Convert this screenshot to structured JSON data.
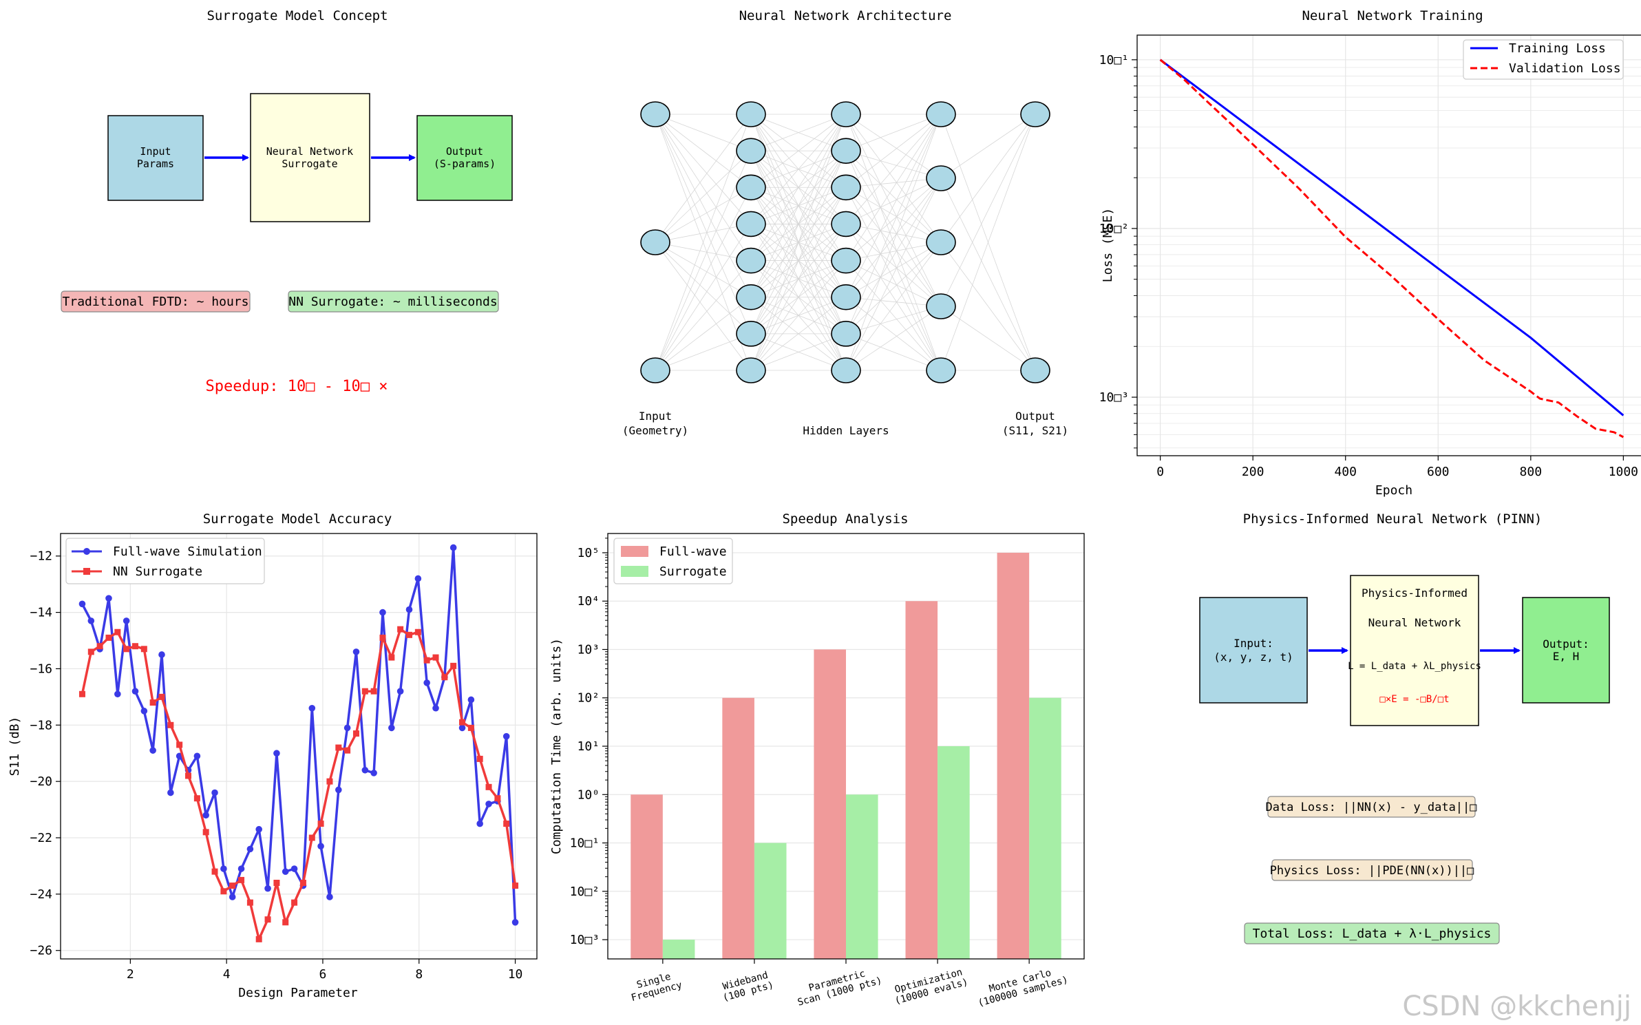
{
  "colors": {
    "input_box": "#add8e6",
    "nn_box": "#ffffe0",
    "output_box": "#90ee90",
    "fdtd_label": "#f4b6b6",
    "nn_label": "#b8ecb8",
    "accent_red": "#ff0000",
    "blue": "#0000ff",
    "red": "#ff0000",
    "full_wave_bar": "#f09a9a",
    "surrogate_bar": "#a6eea6",
    "sim_line": "#3a3ae6",
    "nn_line": "#f03a3a",
    "pinn_loss_box": "#f7e8d0",
    "total_loss_box": "#b8ecb8"
  },
  "panel1": {
    "title": "Surrogate Model Concept",
    "input_box": [
      "Input",
      "Params"
    ],
    "nn_box": [
      "Neural Network",
      "Surrogate"
    ],
    "output_box": [
      "Output",
      "(S-params)"
    ],
    "fdtd_label": "Traditional FDTD: ~ hours",
    "nn_label": "NN Surrogate: ~ milliseconds",
    "speedup": "Speedup: 10□ - 10□ ×"
  },
  "panel2": {
    "title": "Neural Network Architecture",
    "layers": [
      3,
      8,
      8,
      5,
      2
    ],
    "input_label": [
      "Input",
      "(Geometry)"
    ],
    "hidden_label": "Hidden Layers",
    "output_label": [
      "Output",
      "(S11, S21)"
    ]
  },
  "chart_data": [
    {
      "type": "line",
      "title": "Neural Network Training",
      "xlabel": "Epoch",
      "ylabel": "Loss (MSE)",
      "yscale": "log",
      "xlim": [
        -50,
        1050
      ],
      "ylim": [
        0.00045,
        0.14
      ],
      "x_ticks": [
        0,
        200,
        400,
        600,
        800,
        1000
      ],
      "y_ticks": [
        {
          "v": 0.1,
          "label": "10□¹"
        },
        {
          "v": 0.01,
          "label": "10□²"
        },
        {
          "v": 0.001,
          "label": "10□³"
        }
      ],
      "legend_position": "top-right",
      "series": [
        {
          "name": "Training Loss",
          "style": "solid",
          "x": [
            0,
            200,
            400,
            600,
            800,
            1000
          ],
          "y": [
            0.1,
            0.0387,
            0.015,
            0.0058,
            0.00225,
            0.00078
          ]
        },
        {
          "name": "Validation Loss",
          "style": "dashed",
          "x": [
            0,
            50,
            100,
            200,
            300,
            400,
            500,
            600,
            700,
            800,
            820,
            860,
            900,
            940,
            980,
            1000
          ],
          "y": [
            0.1,
            0.077,
            0.057,
            0.0315,
            0.0172,
            0.0089,
            0.0052,
            0.0029,
            0.00165,
            0.00108,
            0.00098,
            0.00093,
            0.00077,
            0.00065,
            0.00062,
            0.00058
          ]
        }
      ]
    },
    {
      "type": "line",
      "title": "Surrogate Model Accuracy",
      "xlabel": "Design Parameter",
      "ylabel": "S11 (dB)",
      "xlim": [
        0.55,
        10.45
      ],
      "ylim": [
        -26.3,
        -11.2
      ],
      "x_ticks": [
        2,
        4,
        6,
        8,
        10
      ],
      "y_ticks": [
        -12,
        -14,
        -16,
        -18,
        -20,
        -22,
        -24,
        -26
      ],
      "legend_position": "top-left",
      "x": [
        1.0,
        1.184,
        1.367,
        1.551,
        1.735,
        1.918,
        2.102,
        2.286,
        2.469,
        2.653,
        2.837,
        3.02,
        3.204,
        3.388,
        3.571,
        3.755,
        3.939,
        4.122,
        4.306,
        4.49,
        4.673,
        4.857,
        5.041,
        5.224,
        5.408,
        5.592,
        5.776,
        5.959,
        6.143,
        6.327,
        6.51,
        6.694,
        6.878,
        7.061,
        7.245,
        7.429,
        7.612,
        7.796,
        7.98,
        8.163,
        8.347,
        8.531,
        8.714,
        8.898,
        9.082,
        9.265,
        9.449,
        9.633,
        9.816,
        10.0
      ],
      "series": [
        {
          "name": "Full-wave Simulation",
          "marker": "circle",
          "y": [
            -13.7,
            -14.3,
            -15.3,
            -13.5,
            -16.9,
            -14.3,
            -16.8,
            -17.5,
            -18.9,
            -15.5,
            -20.4,
            -19.1,
            -19.6,
            -19.1,
            -21.2,
            -20.4,
            -23.1,
            -24.1,
            -23.1,
            -22.4,
            -21.7,
            -23.8,
            -19.0,
            -23.2,
            -23.1,
            -23.7,
            -17.4,
            -22.3,
            -24.1,
            -20.3,
            -18.1,
            -15.4,
            -19.6,
            -19.7,
            -14.0,
            -18.1,
            -16.8,
            -13.9,
            -12.8,
            -16.5,
            -17.4,
            -16.3,
            -11.7,
            -18.1,
            -17.1,
            -21.5,
            -20.8,
            -20.7,
            -18.4,
            -25.0
          ]
        },
        {
          "name": "NN Surrogate",
          "marker": "square",
          "y": [
            -16.9,
            -15.4,
            -15.2,
            -14.9,
            -14.7,
            -15.3,
            -15.2,
            -15.3,
            -17.2,
            -17.0,
            -18.0,
            -18.7,
            -19.8,
            -20.6,
            -21.8,
            -23.2,
            -23.9,
            -23.7,
            -23.5,
            -24.3,
            -25.6,
            -24.9,
            -23.6,
            -25.0,
            -24.3,
            -23.6,
            -22.0,
            -21.5,
            -20.0,
            -18.8,
            -18.9,
            -18.3,
            -16.8,
            -16.8,
            -14.9,
            -15.6,
            -14.6,
            -14.8,
            -14.7,
            -15.7,
            -15.6,
            -16.3,
            -15.9,
            -17.9,
            -18.1,
            -19.2,
            -20.2,
            -20.6,
            -21.5,
            -23.7
          ]
        }
      ]
    },
    {
      "type": "bar",
      "title": "Speedup Analysis",
      "xlabel": "",
      "ylabel": "Computation Time (arb. units)",
      "yscale": "log",
      "ylim": [
        0.0004,
        250000
      ],
      "categories": [
        "Single\nFrequency",
        "Wideband\n(100 pts)",
        "Parametric\nScan (1000 pts)",
        "Optimization\n(10000 evals)",
        "Monte Carlo\n(100000 samples)"
      ],
      "y_ticks": [
        {
          "v": 100000,
          "label": "10⁵"
        },
        {
          "v": 10000,
          "label": "10⁴"
        },
        {
          "v": 1000,
          "label": "10³"
        },
        {
          "v": 100,
          "label": "10²"
        },
        {
          "v": 10,
          "label": "10¹"
        },
        {
          "v": 1,
          "label": "10⁰"
        },
        {
          "v": 0.1,
          "label": "10□¹"
        },
        {
          "v": 0.01,
          "label": "10□²"
        },
        {
          "v": 0.001,
          "label": "10□³"
        }
      ],
      "legend_position": "top-left",
      "series": [
        {
          "name": "Full-wave",
          "values": [
            1,
            100,
            1000,
            10000,
            100000
          ]
        },
        {
          "name": "Surrogate",
          "values": [
            0.001,
            0.1,
            1,
            10,
            100
          ]
        }
      ]
    }
  ],
  "panel6": {
    "title": "Physics-Informed Neural Network (PINN)",
    "input_box": [
      "Input:",
      "(x, y, z, t)"
    ],
    "nn_lines": [
      "Physics-Informed",
      "Neural Network"
    ],
    "loss_eq": "L = L_data + λL_physics",
    "maxwell_eq": "□×E = -□B/□t",
    "output_box": [
      "Output:",
      "E, H"
    ],
    "data_loss": "Data Loss: ||NN(x) - y_data||□",
    "physics_loss": "Physics Loss: ||PDE(NN(x))||□",
    "total_loss": "Total Loss: L_data + λ·L_physics"
  },
  "watermark": "CSDN @kkchenjj"
}
